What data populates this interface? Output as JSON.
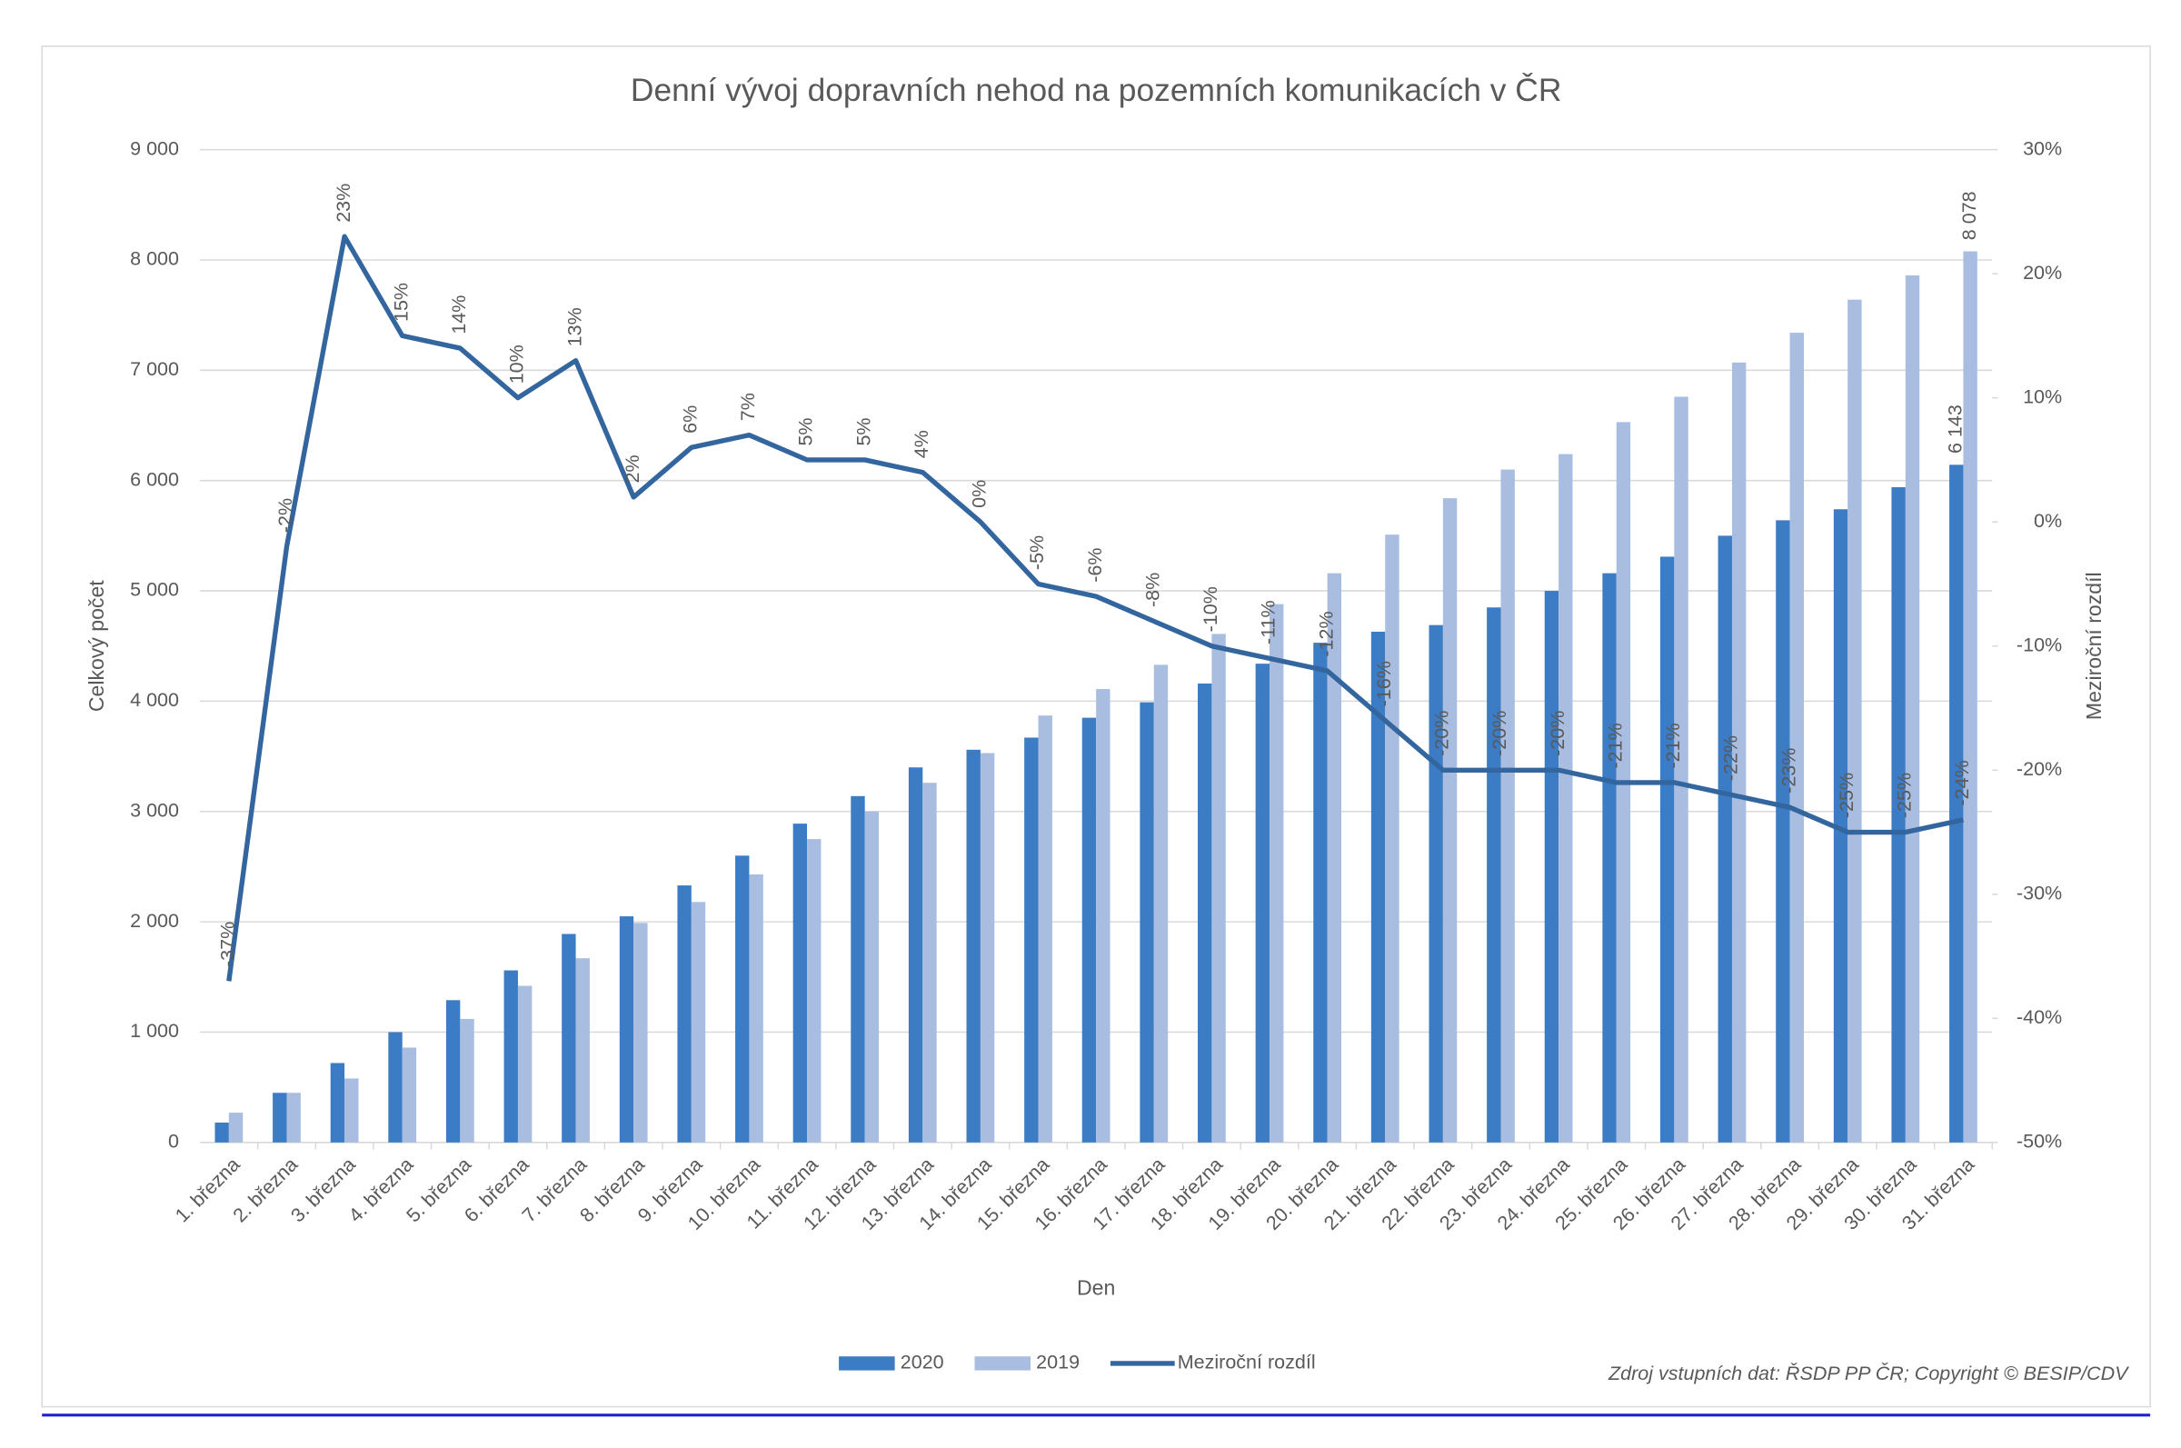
{
  "chart_data": {
    "type": "bar",
    "title": "Denní vývoj dopravních nehod na pozemních komunikacích v ČR",
    "x_label": "Den",
    "y_label": "Celkový počet",
    "y2_label": "Meziroční rozdíl",
    "source": "Zdroj vstupních dat: ŘSDP PP ČR; Copyright © BESIP/CDV",
    "categories": [
      "1. března",
      "2. března",
      "3. března",
      "4. března",
      "5. března",
      "6. března",
      "7. března",
      "8. března",
      "9. března",
      "10. března",
      "11. března",
      "12. března",
      "13. března",
      "14. března",
      "15. března",
      "16. března",
      "17. března",
      "18. března",
      "19. března",
      "20. března",
      "21. března",
      "22. března",
      "23. března",
      "24. března",
      "25. března",
      "26. března",
      "27. března",
      "28. března",
      "29. března",
      "30. března",
      "31. března"
    ],
    "series": [
      {
        "name": "2020",
        "color": "#3c7cc4",
        "values": [
          180,
          450,
          720,
          1000,
          1290,
          1560,
          1890,
          2050,
          2330,
          2600,
          2890,
          3140,
          3400,
          3560,
          3670,
          3850,
          3990,
          4160,
          4340,
          4530,
          4630,
          4690,
          4850,
          5000,
          5160,
          5310,
          5500,
          5640,
          5740,
          5940,
          6143
        ],
        "value_labels": [
          null,
          null,
          null,
          null,
          null,
          null,
          null,
          null,
          null,
          null,
          null,
          null,
          null,
          null,
          null,
          null,
          null,
          null,
          null,
          null,
          null,
          null,
          null,
          null,
          null,
          null,
          null,
          null,
          null,
          null,
          "6 143"
        ]
      },
      {
        "name": "2019",
        "color": "#a9bde0",
        "values": [
          270,
          450,
          580,
          860,
          1120,
          1420,
          1670,
          1990,
          2180,
          2430,
          2750,
          3000,
          3260,
          3530,
          3870,
          4110,
          4330,
          4610,
          4880,
          5160,
          5510,
          5840,
          6100,
          6240,
          6530,
          6760,
          7070,
          7340,
          7640,
          7860,
          8078
        ],
        "value_labels": [
          null,
          null,
          null,
          null,
          null,
          null,
          null,
          null,
          null,
          null,
          null,
          null,
          null,
          null,
          null,
          null,
          null,
          null,
          null,
          null,
          null,
          null,
          null,
          null,
          null,
          null,
          null,
          null,
          null,
          null,
          "8 078"
        ]
      },
      {
        "name": "Meziroční rozdíl",
        "color": "#33659f",
        "type": "line",
        "axis": "y2",
        "values": [
          -37,
          -2,
          23,
          15,
          14,
          10,
          13,
          2,
          6,
          7,
          5,
          5,
          4,
          0,
          -5,
          -6,
          -8,
          -10,
          -11,
          -12,
          -16,
          -20,
          -20,
          -20,
          -21,
          -21,
          -22,
          -23,
          -25,
          -25,
          -24
        ],
        "value_labels": [
          "-37%",
          "-2%",
          "23%",
          "15%",
          "14%",
          "10%",
          "13%",
          "2%",
          "6%",
          "7%",
          "5%",
          "5%",
          "4%",
          "0%",
          "-5%",
          "-6%",
          "-8%",
          "-10%",
          "-11%",
          "-12%",
          "-16%",
          "-20%",
          "-20%",
          "-20%",
          "-21%",
          "-21%",
          "-22%",
          "-23%",
          "-25%",
          "-25%",
          "-24%"
        ]
      }
    ],
    "ylim": [
      0,
      9000
    ],
    "yticks": [
      0,
      {
        "value": 1000,
        "label": "1 000"
      },
      {
        "value": 2000,
        "label": "2 000"
      },
      {
        "value": 3000,
        "label": "3 000"
      },
      {
        "value": 4000,
        "label": "4 000"
      },
      {
        "value": 5000,
        "label": "5 000"
      },
      {
        "value": 6000,
        "label": "6 000"
      },
      {
        "value": 7000,
        "label": "7 000"
      },
      {
        "value": 8000,
        "label": "8 000"
      },
      {
        "value": 9000,
        "label": "9 000"
      }
    ],
    "y2lim": [
      -50,
      30
    ],
    "y2ticks": [
      {
        "value": -50,
        "label": "-50%"
      },
      {
        "value": -40,
        "label": "-40%"
      },
      {
        "value": -30,
        "label": "-30%"
      },
      {
        "value": -20,
        "label": "-20%"
      },
      {
        "value": -10,
        "label": "-10%"
      },
      {
        "value": 0,
        "label": "0%"
      },
      {
        "value": 10,
        "label": "10%"
      },
      {
        "value": 20,
        "label": "20%"
      },
      {
        "value": 30,
        "label": "30%"
      }
    ],
    "grid": true,
    "legend": "bottom"
  }
}
